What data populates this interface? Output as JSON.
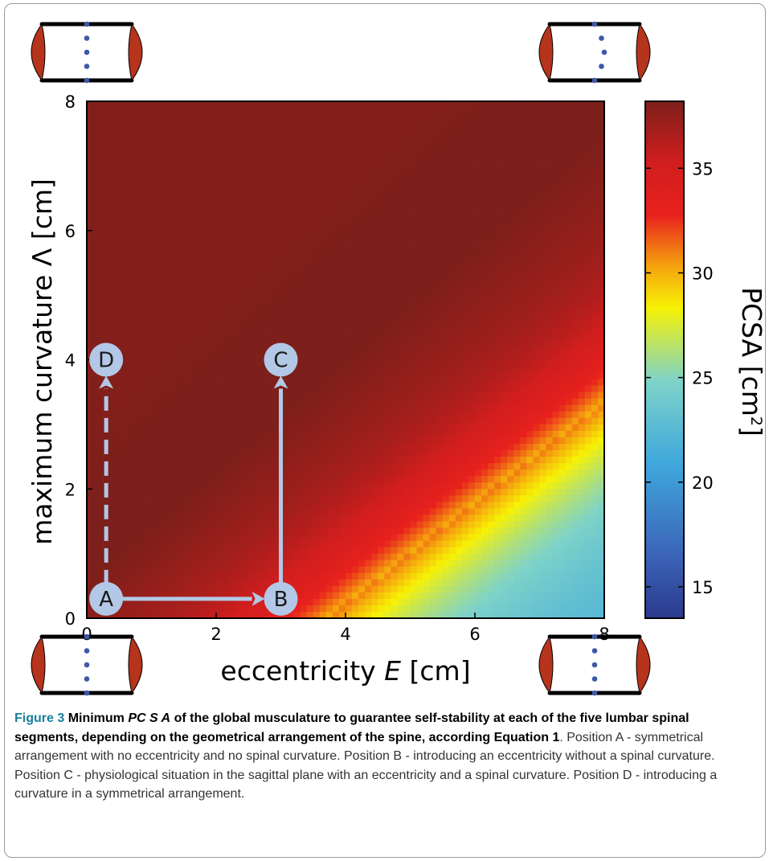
{
  "chart_data": {
    "type": "heatmap",
    "xlabel_text": "eccentricity",
    "xlabel_symbol": "E",
    "xlabel_unit": "[cm]",
    "ylabel": "maximum curvature Λ [cm]",
    "colorbar_label": "PCSA [cm",
    "colorbar_label_sup": "2",
    "colorbar_label_close": "]",
    "xlim": [
      0,
      8
    ],
    "ylim": [
      0,
      8
    ],
    "x_ticks": [
      "0",
      "2",
      "4",
      "6",
      "8"
    ],
    "y_ticks": [
      "0",
      "2",
      "4",
      "6",
      "8"
    ],
    "colorbar_range": [
      13.5,
      38.2
    ],
    "colorbar_ticks": [
      "15",
      "20",
      "25",
      "30",
      "35"
    ],
    "colormap": [
      "#2b3a8c",
      "#3b63b8",
      "#3fa8dc",
      "#7fd3c8",
      "#f7f205",
      "#f5a40e",
      "#e8211d",
      "#e31e24",
      "#7d1f1a"
    ],
    "ridge_peak_value": 38.2,
    "ridge_offset_at_origin": 1.0,
    "ridge_slope": 0.92,
    "optimum_line_offset": -2.9,
    "optimum_line_slope": 0.78,
    "points": [
      {
        "label": "A",
        "x": 0.3,
        "y": 0.3
      },
      {
        "label": "B",
        "x": 3.0,
        "y": 0.3
      },
      {
        "label": "C",
        "x": 3.0,
        "y": 4.0
      },
      {
        "label": "D",
        "x": 0.3,
        "y": 4.0
      }
    ],
    "arrows": [
      {
        "from": "A",
        "to": "B",
        "style": "solid"
      },
      {
        "from": "B",
        "to": "C",
        "style": "solid"
      },
      {
        "from": "A",
        "to": "D",
        "style": "dashed"
      }
    ],
    "colors": {
      "arrow": "#b3c7e6",
      "marker": "#b3c7e6",
      "spine_dot": "#3e58a8",
      "muscle": "#b6331c"
    }
  },
  "caption": {
    "figure_label": "Figure 3",
    "bold_part1": "Minimum",
    "bold_italic": "PC S A",
    "bold_part2": "of the global musculature to guarantee self-stability at each of the five lumbar spinal segments, depending on the geometrical arrangement of the spine, according",
    "equation_ref": "Equation 1",
    "body": ". Position A - symmetrical arrangement with no eccentricity and no spinal curvature. Position B - introducing an eccentricity without a spinal curvature. Position C - physiological situation in the sagittal plane with an eccentricity and a spinal curvature. Position D - introducing a curvature in a symmetrical arrangement."
  }
}
